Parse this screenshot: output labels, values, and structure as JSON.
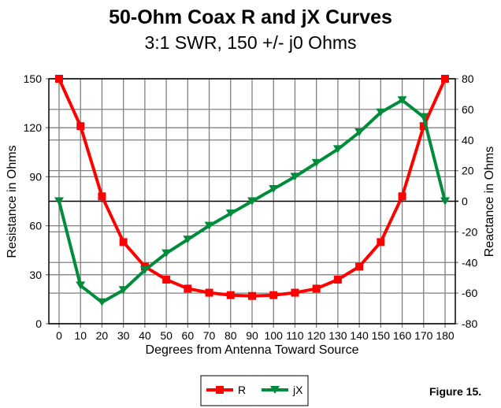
{
  "chart_data": {
    "type": "line",
    "title": "50-Ohm Coax R and jX Curves",
    "subtitle": "3:1 SWR, 150 +/- j0 Ohms",
    "xlabel": "Degrees from Antenna Toward Source",
    "ylabel": "Resistance in Ohms",
    "y2label": "Reactance in Ohms",
    "x": [
      0,
      10,
      20,
      30,
      40,
      50,
      60,
      70,
      80,
      90,
      100,
      110,
      120,
      130,
      140,
      150,
      160,
      170,
      180
    ],
    "xlim": [
      0,
      180
    ],
    "xticks": [
      "0",
      "10",
      "20",
      "30",
      "40",
      "50",
      "60",
      "70",
      "80",
      "90",
      "100",
      "110",
      "120",
      "130",
      "140",
      "150",
      "160",
      "170",
      "180"
    ],
    "ylim": [
      0,
      150
    ],
    "yticks": [
      "0",
      "30",
      "60",
      "90",
      "120",
      "150"
    ],
    "y2lim": [
      -80,
      80
    ],
    "y2ticks": [
      "-80",
      "-60",
      "-40",
      "-20",
      "0",
      "20",
      "40",
      "60",
      "80"
    ],
    "grid": true,
    "legend_position": "bottom-center",
    "series": [
      {
        "name": "R",
        "axis": "left",
        "color": "#ff0000",
        "marker": "square",
        "values": [
          150,
          121,
          78,
          50,
          35,
          27,
          21.5,
          19,
          17.5,
          17,
          17.5,
          19,
          21.5,
          27,
          35,
          50,
          78,
          121,
          150
        ]
      },
      {
        "name": "jX",
        "axis": "right",
        "color": "#008c3a",
        "marker": "triangle-down",
        "values": [
          0,
          -55,
          -66,
          -58,
          -45,
          -34,
          -25,
          -16,
          -8,
          0,
          8,
          16,
          25,
          34,
          45,
          58,
          66,
          55,
          0
        ]
      }
    ],
    "annotation": "Figure 15."
  }
}
